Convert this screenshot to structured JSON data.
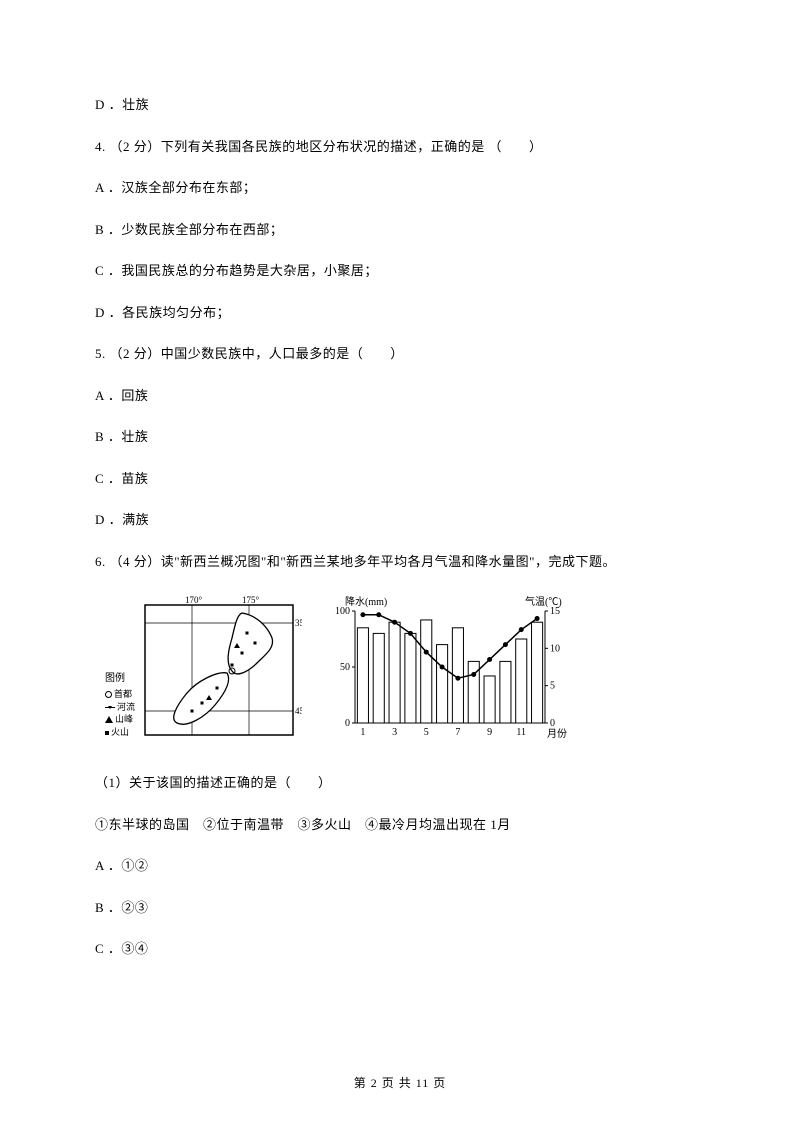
{
  "q3_optD": "D ．壮族",
  "q4_stem": "4.  （2 分）下列有关我国各民族的地区分布状况的描述，正确的是 （　　）",
  "q4_A": "A ．汉族全部分布在东部；",
  "q4_B": "B ．少数民族全部分布在西部；",
  "q4_C": "C ．我国民族总的分布趋势是大杂居，小聚居；",
  "q4_D": "D ．各民族均匀分布；",
  "q5_stem": "5.  （2 分）中国少数民族中，人口最多的是（　　）",
  "q5_A": "A ．回族",
  "q5_B": "B ．壮族",
  "q5_C": "C ．苗族",
  "q5_D": "D ．满族",
  "q6_stem": "6.  （4 分）读\"新西兰概况图\"和\"新西兰某地多年平均各月气温和降水量图\"，完成下题。",
  "q6_sub1": "（1）关于该国的描述正确的是（　　）",
  "q6_sub1_opts": "①东半球的岛国　②位于南温带　③多火山　④最冷月均温出现在 1月",
  "q6_A": "A ．①②",
  "q6_B": "B ．②③",
  "q6_C": "C ．③④",
  "legend": {
    "title": "图例",
    "items": [
      "首都",
      "河流",
      "山峰",
      "火山"
    ]
  },
  "map": {
    "lons": [
      "170°",
      "175°"
    ],
    "lats": [
      "35°",
      "45°"
    ],
    "border_color": "#000"
  },
  "chart": {
    "type": "combo-bar-line",
    "precip_label": "降水(mm)",
    "temp_label": "气温(℃)",
    "x_label": "月份",
    "x_ticks": [
      "1",
      "3",
      "5",
      "7",
      "9",
      "11"
    ],
    "y_precip": {
      "max": 100,
      "ticks": [
        0,
        50,
        100
      ]
    },
    "y_temp": {
      "max": 15,
      "ticks": [
        0,
        5,
        10,
        15
      ]
    },
    "bars": [
      85,
      80,
      90,
      80,
      92,
      70,
      85,
      55,
      42,
      55,
      75,
      90
    ],
    "line": [
      14.5,
      14.5,
      13.5,
      12,
      9.5,
      7.5,
      6,
      6.5,
      8.5,
      10.5,
      12.5,
      14
    ],
    "bar_fill": "#ffffff",
    "bar_stroke": "#000000",
    "line_color": "#000000",
    "grid_color": "#000000",
    "font_size": 10
  },
  "footer": "第 2 页 共 11 页"
}
